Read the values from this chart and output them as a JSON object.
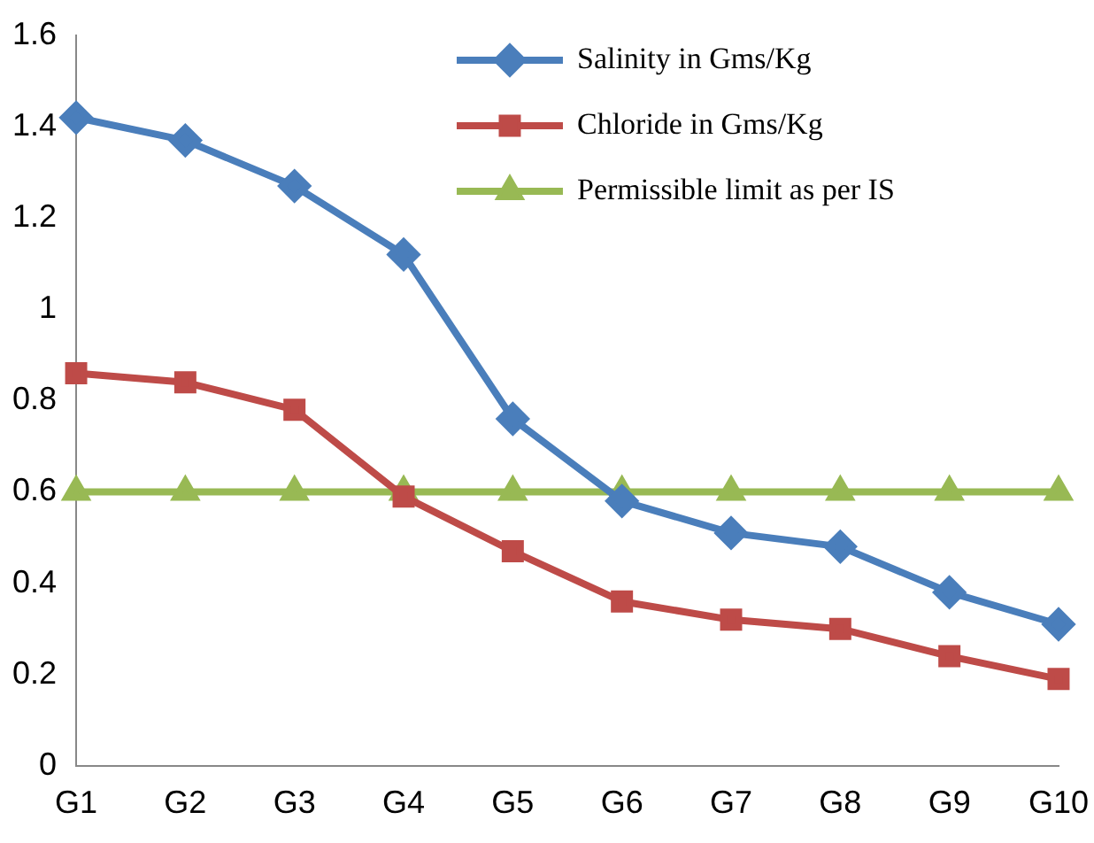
{
  "chart_data": {
    "type": "line",
    "categories": [
      "G1",
      "G2",
      "G3",
      "G4",
      "G5",
      "G6",
      "G7",
      "G8",
      "G9",
      "G10"
    ],
    "series": [
      {
        "name": "Salinity in Gms/Kg",
        "color": "#4a7ebb",
        "marker": "diamond",
        "values": [
          1.42,
          1.37,
          1.27,
          1.12,
          0.76,
          0.58,
          0.51,
          0.48,
          0.38,
          0.31
        ]
      },
      {
        "name": "Chloride in Gms/Kg",
        "color": "#be4b48",
        "marker": "square",
        "values": [
          0.86,
          0.84,
          0.78,
          0.59,
          0.47,
          0.36,
          0.32,
          0.3,
          0.24,
          0.19
        ]
      },
      {
        "name": "Permissible limit as per IS",
        "color": "#98b954",
        "marker": "triangle",
        "values": [
          0.6,
          0.6,
          0.6,
          0.6,
          0.6,
          0.6,
          0.6,
          0.6,
          0.6,
          0.6
        ]
      }
    ],
    "ylim": [
      0,
      1.6
    ],
    "yticks": [
      0,
      0.2,
      0.4,
      0.6,
      0.8,
      1,
      1.2,
      1.4,
      1.6
    ],
    "grid": false,
    "legend": "top right"
  }
}
